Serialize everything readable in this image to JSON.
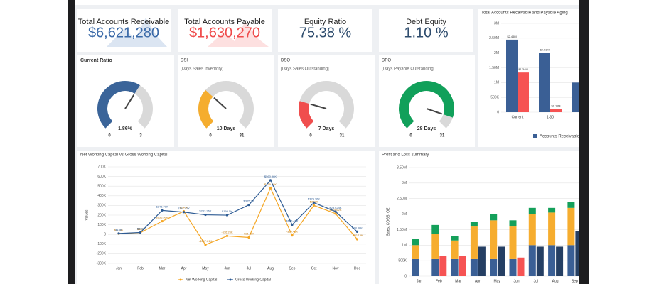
{
  "kpis": [
    {
      "title": "Total Accounts Receivable",
      "value": "$6,621,280",
      "color": "#3b6aa8"
    },
    {
      "title": "Total Accounts Payable",
      "value": "$1,630,270",
      "color": "#ef4b4b"
    },
    {
      "title": "Equity Ratio",
      "value": "75.38 %",
      "color": "#2f4d6e"
    },
    {
      "title": "Debt Equity",
      "value": "1.10 %",
      "color": "#2f4d6e"
    }
  ],
  "gauges": [
    {
      "title": "Current Ratio",
      "value": 1.86,
      "value_label": "1.86%",
      "min": 0,
      "max": 3,
      "color": "#3a6499"
    },
    {
      "title": "DSI",
      "subtitle": "[Days Sales Inventory]",
      "value": 10,
      "value_label": "10 Days",
      "min": 0,
      "max": 31,
      "color": "#f5ad2e"
    },
    {
      "title": "DSO",
      "subtitle": "[Days Sales Outstanding]",
      "value": 7,
      "value_label": "7 Days",
      "min": 0,
      "max": 31,
      "color": "#f04e4e"
    },
    {
      "title": "DPO",
      "subtitle": "[Days Payable Outstanding]",
      "value": 28,
      "value_label": "28 Days",
      "min": 0,
      "max": 31,
      "color": "#11a05a"
    }
  ],
  "chart_data": [
    {
      "type": "bar",
      "title": "Total Accounts Receivable and Payable Aging",
      "categories": [
        "Current",
        "1-30",
        null
      ],
      "series": [
        {
          "name": "Accounts Receivable",
          "color": "#3a5f95",
          "values": [
            2450000,
            2010000,
            1000000
          ],
          "value_labels": [
            "$2.45M",
            "$2.01M",
            null
          ]
        },
        {
          "color": "#f65353",
          "values": [
            1340000,
            110000,
            null
          ],
          "value_labels": [
            "$1.34M",
            "$0.11M",
            null
          ]
        }
      ],
      "ylim": [
        0,
        3000000
      ],
      "yticks": [
        0,
        {
          "value": 500000,
          "label": "500K"
        },
        {
          "value": 1000000,
          "label": "1M"
        },
        {
          "value": 1500000,
          "label": "1.50M"
        },
        {
          "value": 2000000,
          "label": "2M"
        },
        {
          "value": 2500000,
          "label": "2.50M"
        },
        {
          "value": 3000000,
          "label": "3M"
        }
      ],
      "grid": true,
      "legend": "bottom"
    },
    {
      "type": "line",
      "title": "Net Working Capital vs Gross Working Capital",
      "y_label": "Values",
      "categories": [
        "Jan",
        "Feb",
        "Mar",
        "Apr",
        "May",
        "Jun",
        "Jul",
        "Aug",
        "Sep",
        "Oct",
        "Nov",
        "Dec"
      ],
      "series": [
        {
          "name": "Net Working Capital",
          "color": "#f5a623",
          "values": [
            7730,
            18000,
            136560,
            240000,
            -107210,
            -16260,
            -31320,
            479960,
            -10450,
            300000,
            215620,
            -50190
          ],
          "value_labels": [
            "$7.73K",
            "$18K",
            "$136.56K",
            "$240K",
            "-$107.21K",
            "-$16.26K",
            "-$31.32K",
            "$479.96K",
            "-$10.45K",
            "$300K",
            "$215.62K",
            "-$50.19K"
          ]
        },
        {
          "name": "Gross Working Capital",
          "color": "#2d5b94",
          "values": [
            10000,
            20000,
            248700,
            231120,
            203360,
            199500,
            305700,
            560960,
            100450,
            329360,
            237240,
            28080
          ],
          "value_labels": [
            "$10K",
            "$20K",
            "$248.70K",
            "$231.12K",
            "$203.36K",
            "$199.5K",
            "$305.7K",
            "$560.96K",
            "$100.45K",
            "$329.36K",
            "$237.24K",
            "$28.08K"
          ]
        }
      ],
      "ylim": [
        -300000,
        700000
      ],
      "yticks": [
        {
          "value": -300000,
          "label": "-300K"
        },
        {
          "value": -200000,
          "label": "-200K"
        },
        {
          "value": -100000,
          "label": "-100K"
        },
        0,
        {
          "value": 100000,
          "label": "100K"
        },
        {
          "value": 200000,
          "label": "200K"
        },
        {
          "value": 300000,
          "label": "300K"
        },
        {
          "value": 400000,
          "label": "400K"
        },
        {
          "value": 500000,
          "label": "500K"
        },
        {
          "value": 600000,
          "label": "600K"
        },
        {
          "value": 700000,
          "label": "700K"
        }
      ],
      "grid": true,
      "legend": "bottom"
    },
    {
      "type": "stacked_bar",
      "title": "Profit and Loss summary",
      "y_label": "Sales, COGS, OE",
      "categories": [
        "Jan",
        "Feb",
        "Mar",
        "Apr",
        "May",
        "Jun",
        "Jul",
        "Aug",
        "Sep"
      ],
      "stacks": [
        {
          "color": "#3a5f95",
          "values": [
            550000,
            550000,
            550000,
            550000,
            550000,
            550000,
            1000000,
            1000000,
            1000000
          ]
        },
        {
          "color": "#f6ad2f",
          "values": [
            450000,
            800000,
            600000,
            1050000,
            1250000,
            1050000,
            1000000,
            1050000,
            1200000
          ]
        },
        {
          "color": "#14a05a",
          "values": [
            200000,
            300000,
            150000,
            150000,
            200000,
            200000,
            200000,
            150000,
            200000
          ]
        }
      ],
      "side": [
        {
          "color": "#f65353",
          "values": [
            null,
            650000,
            650000,
            null,
            null,
            600000,
            null,
            null,
            null
          ]
        },
        {
          "color": "#253f63",
          "values": [
            null,
            null,
            null,
            950000,
            950000,
            null,
            950000,
            950000,
            1450000
          ]
        }
      ],
      "ylim": [
        0,
        3500000
      ],
      "yticks": [
        0,
        {
          "value": 500000,
          "label": "500K"
        },
        {
          "value": 1000000,
          "label": "1M"
        },
        {
          "value": 1500000,
          "label": "1.50M"
        },
        {
          "value": 2000000,
          "label": "2M"
        },
        {
          "value": 2500000,
          "label": "2.50M"
        },
        {
          "value": 3000000,
          "label": "3M"
        },
        {
          "value": 3500000,
          "label": "3.50M"
        }
      ],
      "grid": true
    }
  ]
}
